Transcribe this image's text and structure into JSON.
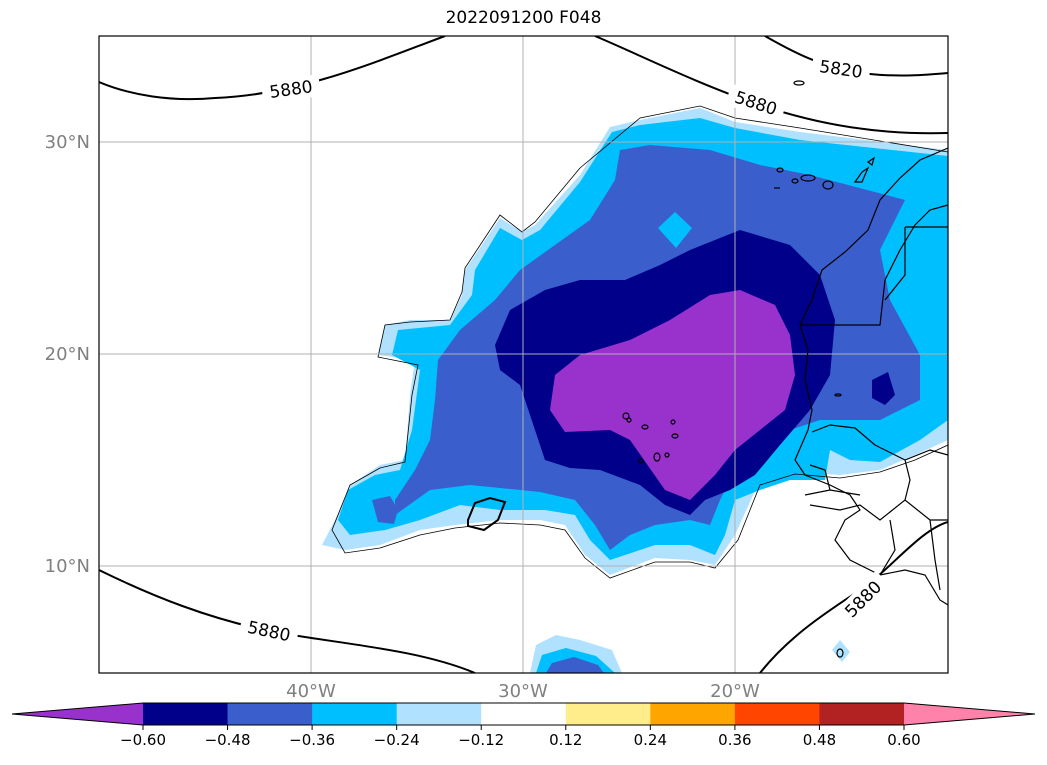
{
  "title": "2022091200 F048",
  "map": {
    "lat_labels": [
      "30°N",
      "20°N",
      "10°N"
    ],
    "lon_labels": [
      "40°W",
      "30°W",
      "20°W"
    ],
    "label_color": "#808080",
    "contours": [
      {
        "value": "5880",
        "text": "5880"
      },
      {
        "value": "5820",
        "text": "5820"
      }
    ]
  },
  "colorbar": {
    "colors": [
      "#9932cc",
      "#00008b",
      "#3a5fcd",
      "#00bfff",
      "#b0e2ff",
      "#ffffff",
      "#ffec8b",
      "#ffa500",
      "#ff4500",
      "#b22222",
      "#ff82ab"
    ],
    "tick_labels": [
      "−0.60",
      "−0.48",
      "−0.36",
      "−0.24",
      "−0.12",
      "0.12",
      "0.24",
      "0.36",
      "0.48",
      "0.60"
    ]
  }
}
